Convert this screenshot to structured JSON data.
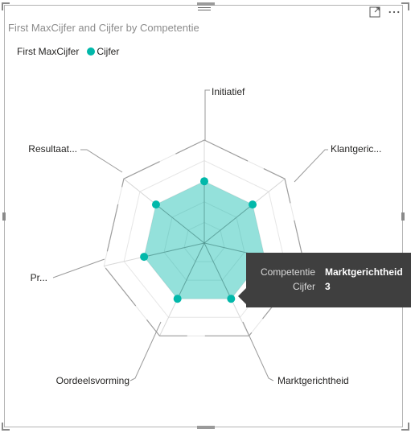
{
  "visual": {
    "title": "First MaxCijfer and Cijfer by Competentie",
    "legend": {
      "items": [
        {
          "label": "First MaxCijfer",
          "color": null
        },
        {
          "label": "Cijfer",
          "color": "#01B8AA"
        }
      ]
    },
    "icons": [
      "focus-mode-icon",
      "more-options-icon"
    ]
  },
  "chart_data": {
    "type": "radar",
    "title": "First MaxCijfer and Cijfer by Competentie",
    "categories": [
      "Initiatief",
      "Klantgeric...",
      "Marktgerichtheid",
      "Oordeelsvorming",
      "Pr...",
      "Resultaat..."
    ],
    "axis_full_names": {
      "Marktgerichtheid": "Marktgerichtheid"
    },
    "series": [
      {
        "name": "First MaxCijfer",
        "values": [
          5,
          5,
          5,
          5,
          5,
          5
        ],
        "color": "#9e9e9e"
      },
      {
        "name": "Cijfer",
        "values": [
          3,
          3,
          3,
          3,
          3,
          3
        ],
        "color": "#01B8AA"
      }
    ],
    "max": 5,
    "grid_levels": 5,
    "legend_position": "top-left"
  },
  "tooltip": {
    "rows": [
      {
        "label": "Competentie",
        "value": "Marktgerichtheid"
      },
      {
        "label": "Cijfer",
        "value": "3"
      }
    ]
  }
}
